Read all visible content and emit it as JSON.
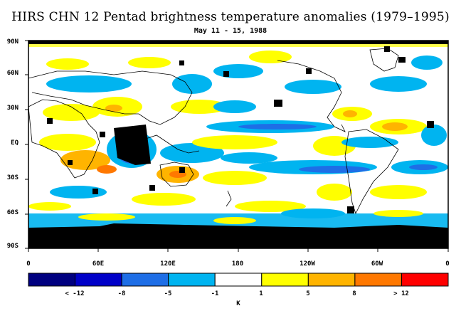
{
  "title": "HIRS CHN 12 Pentad brightness temperature anomalies (1979–1995)",
  "subtitle": "May 11 - 15, 1988",
  "latitude_labels": [
    "90N",
    "60N",
    "30N",
    "EQ",
    "30S",
    "60S",
    "90S"
  ],
  "longitude_labels": [
    "0",
    "60E",
    "120E",
    "180",
    "120W",
    "60W",
    "0"
  ],
  "colorbar": {
    "colors": [
      "#000080",
      "#0000c8",
      "#1e6ee6",
      "#00b4f0",
      "#ffffff",
      "#ffff00",
      "#ffb400",
      "#ff7800",
      "#ff0000"
    ],
    "labels": [
      "< -12",
      "-8",
      "-5",
      "-1",
      "1",
      "5",
      "8",
      "> 12"
    ],
    "unit": "K"
  },
  "colors": {
    "missing": "#000000",
    "coast": "#000000",
    "frame": "#000000"
  }
}
